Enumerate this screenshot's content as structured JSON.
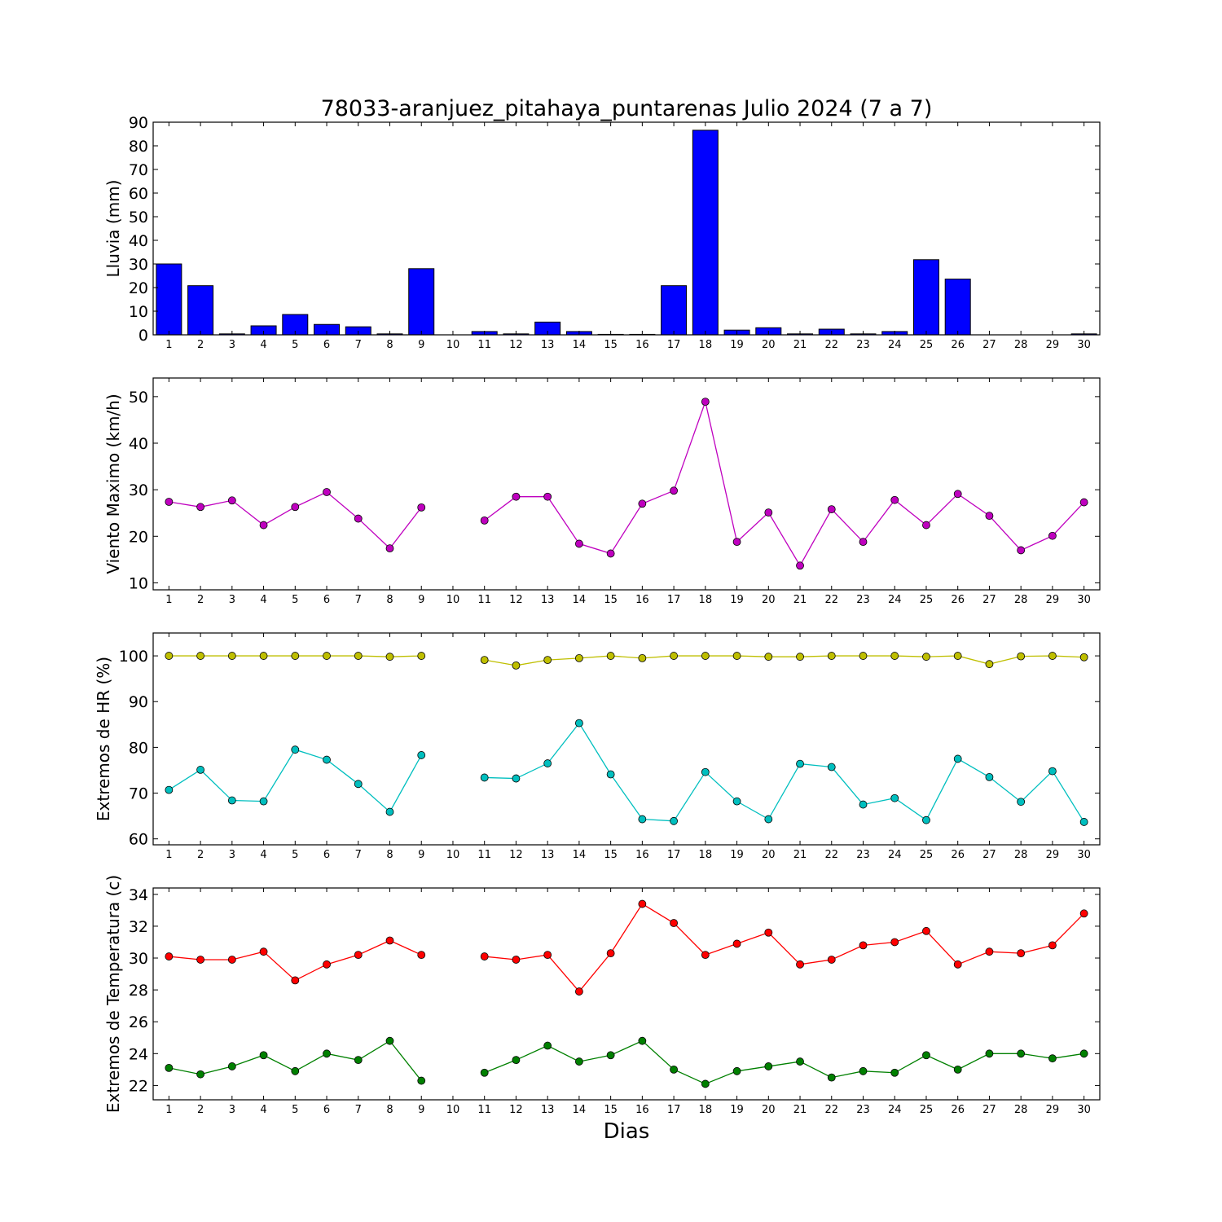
{
  "title": "78033-aranjuez_pitahaya_puntarenas Julio 2024  (7 a 7)",
  "xlabel": "Dias",
  "chart_data": [
    {
      "type": "bar",
      "ylabel": "Lluvia (mm)",
      "ylim": [
        0,
        90
      ],
      "yticks": [
        0,
        10,
        20,
        30,
        40,
        50,
        60,
        70,
        80,
        90
      ],
      "categories": [
        "1",
        "2",
        "3",
        "4",
        "5",
        "6",
        "7",
        "8",
        "9",
        "10",
        "11",
        "12",
        "13",
        "14",
        "15",
        "16",
        "17",
        "18",
        "19",
        "20",
        "21",
        "22",
        "23",
        "24",
        "25",
        "26",
        "27",
        "28",
        "29",
        "30"
      ],
      "series": [
        {
          "color": "#0000ff",
          "values": [
            30.0,
            20.8,
            0.4,
            3.8,
            8.6,
            4.4,
            3.4,
            0.4,
            28.0,
            0,
            1.4,
            0.4,
            5.4,
            1.4,
            0.2,
            0.2,
            20.8,
            86.6,
            2.0,
            3.0,
            0.4,
            2.4,
            0.4,
            1.4,
            31.8,
            23.6,
            0,
            0,
            0,
            0.4
          ]
        }
      ]
    },
    {
      "type": "line",
      "ylabel": "Viento Maximo (km/h)",
      "ylim": [
        8.5,
        54
      ],
      "yticks": [
        10,
        20,
        30,
        40,
        50
      ],
      "categories": [
        "1",
        "2",
        "3",
        "4",
        "5",
        "6",
        "7",
        "8",
        "9",
        "10",
        "11",
        "12",
        "13",
        "14",
        "15",
        "16",
        "17",
        "18",
        "19",
        "20",
        "21",
        "22",
        "23",
        "24",
        "25",
        "26",
        "27",
        "28",
        "29",
        "30"
      ],
      "series": [
        {
          "color": "#bf00bf",
          "values": [
            27.4,
            26.3,
            27.7,
            22.4,
            26.3,
            29.5,
            23.8,
            17.4,
            26.2,
            null,
            23.4,
            28.5,
            28.5,
            18.4,
            16.3,
            27.0,
            29.8,
            48.9,
            18.8,
            25.1,
            13.7,
            25.8,
            18.8,
            27.8,
            22.4,
            29.1,
            24.4,
            17.0,
            20.1,
            27.3
          ]
        }
      ]
    },
    {
      "type": "line",
      "ylabel": "Extremos de HR (%)",
      "ylim": [
        58.7,
        105
      ],
      "yticks": [
        60,
        70,
        80,
        90,
        100
      ],
      "categories": [
        "1",
        "2",
        "3",
        "4",
        "5",
        "6",
        "7",
        "8",
        "9",
        "10",
        "11",
        "12",
        "13",
        "14",
        "15",
        "16",
        "17",
        "18",
        "19",
        "20",
        "21",
        "22",
        "23",
        "24",
        "25",
        "26",
        "27",
        "28",
        "29",
        "30"
      ],
      "series": [
        {
          "color": "#bfbf00",
          "values": [
            100,
            100,
            100,
            100,
            100,
            100,
            100,
            99.8,
            100,
            null,
            99.1,
            97.9,
            99.1,
            99.5,
            100,
            99.5,
            100,
            100,
            100,
            99.8,
            99.8,
            100,
            100,
            100,
            99.8,
            100,
            98.2,
            99.9,
            100,
            99.7
          ]
        },
        {
          "color": "#00bfbf",
          "values": [
            70.7,
            75.1,
            68.4,
            68.2,
            79.5,
            77.3,
            72.0,
            65.9,
            78.3,
            null,
            73.4,
            73.2,
            76.5,
            85.3,
            74.1,
            64.3,
            63.9,
            74.6,
            68.2,
            64.3,
            76.4,
            75.7,
            67.5,
            68.9,
            64.1,
            77.5,
            73.5,
            68.1,
            74.8,
            63.7
          ]
        }
      ]
    },
    {
      "type": "line",
      "ylabel": "Extremos de Temperatura (c)",
      "ylim": [
        21.1,
        34.4
      ],
      "yticks": [
        22,
        24,
        26,
        28,
        30,
        32,
        34
      ],
      "categories": [
        "1",
        "2",
        "3",
        "4",
        "5",
        "6",
        "7",
        "8",
        "9",
        "10",
        "11",
        "12",
        "13",
        "14",
        "15",
        "16",
        "17",
        "18",
        "19",
        "20",
        "21",
        "22",
        "23",
        "24",
        "25",
        "26",
        "27",
        "28",
        "29",
        "30"
      ],
      "series": [
        {
          "color": "#ff0000",
          "values": [
            30.1,
            29.9,
            29.9,
            30.4,
            28.6,
            29.6,
            30.2,
            31.1,
            30.2,
            null,
            30.1,
            29.9,
            30.2,
            27.9,
            30.3,
            33.4,
            32.2,
            30.2,
            30.9,
            31.6,
            29.6,
            29.9,
            30.8,
            31.0,
            31.7,
            29.6,
            30.4,
            30.3,
            30.8,
            32.8
          ]
        },
        {
          "color": "#008000",
          "values": [
            23.1,
            22.7,
            23.2,
            23.9,
            22.9,
            24.0,
            23.6,
            24.8,
            22.3,
            null,
            22.8,
            23.6,
            24.5,
            23.5,
            23.9,
            24.8,
            23.0,
            22.1,
            22.9,
            23.2,
            23.5,
            22.5,
            22.9,
            22.8,
            23.9,
            23.0,
            24.0,
            24.0,
            23.7,
            24.0
          ]
        }
      ]
    }
  ]
}
